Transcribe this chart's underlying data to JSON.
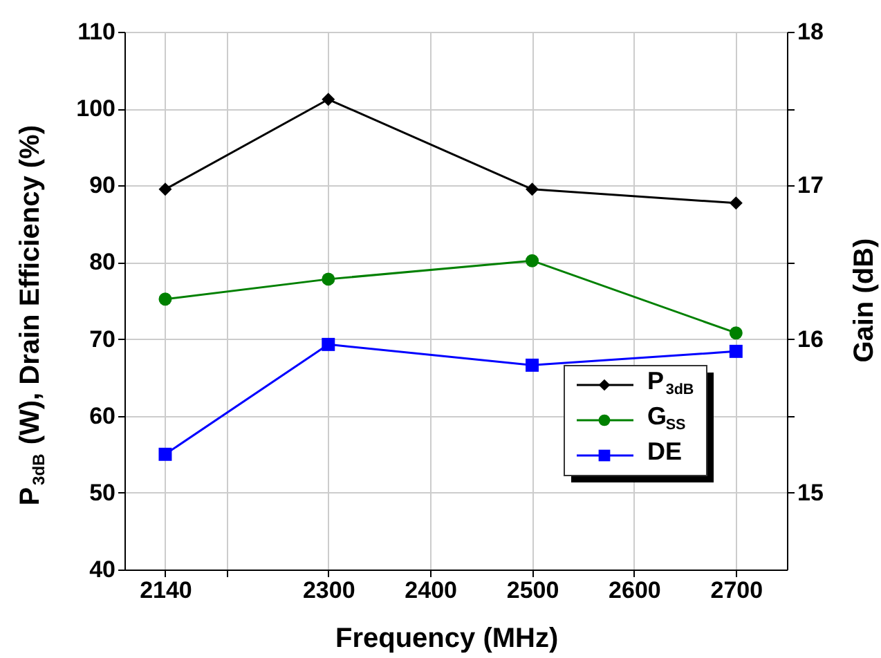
{
  "chart_data": {
    "type": "line",
    "xlabel": "Frequency (MHz)",
    "ylabel": "P$_{3dB}$ (W), Drain Efficiency (%)",
    "y2label": "Gain (dB)",
    "x": [
      2140,
      2300,
      2500,
      2700
    ],
    "xlim": [
      2100,
      2750
    ],
    "xticks": [
      2140,
      {
        "value": 2200,
        "label": null
      },
      2300,
      2400,
      2500,
      2600,
      2700
    ],
    "ylim": [
      40,
      110
    ],
    "yticks": [
      40,
      50,
      60,
      70,
      80,
      90,
      100,
      110
    ],
    "y2lim": [
      14.5,
      18
    ],
    "y2ticks": [
      15,
      {
        "value": 15.5,
        "label": null
      },
      16,
      {
        "value": 16.5,
        "label": null
      },
      17,
      {
        "value": 17.5,
        "label": null
      },
      18
    ],
    "grid": true,
    "legend": "bottom right",
    "line_style": "solid",
    "series": [
      {
        "name": "P$_{3dB}$",
        "color": "#000000",
        "marker": "diamond",
        "values": [
          89.5,
          101.2,
          89.5,
          87.7
        ]
      },
      {
        "name": "G$_{SS}$",
        "color": "#008000",
        "marker": "circle",
        "axis": "y2",
        "values": [
          16.26,
          16.39,
          16.51,
          16.04
        ]
      },
      {
        "name": "DE",
        "color": "#0000ff",
        "marker": "square",
        "values": [
          55,
          69.3,
          66.6,
          68.4
        ]
      }
    ]
  }
}
